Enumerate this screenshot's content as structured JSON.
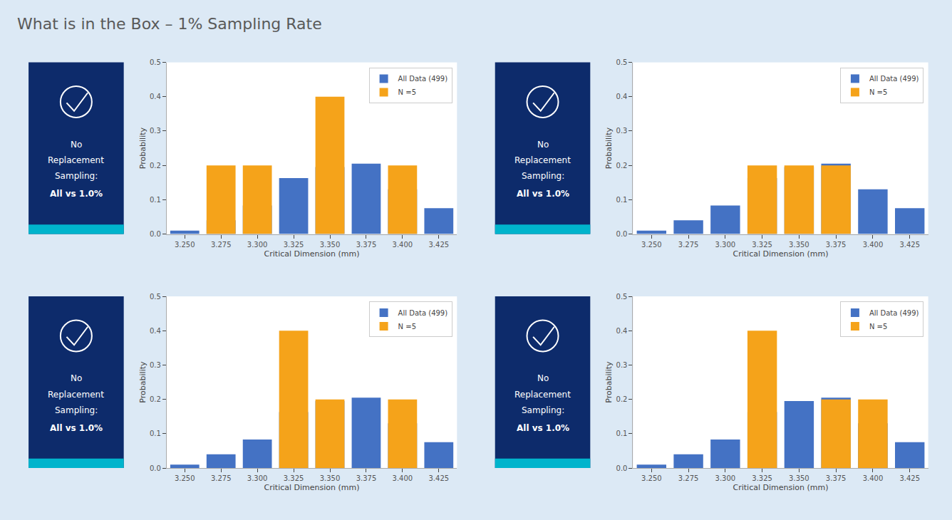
{
  "title": "What is in the Box – 1% Sampling Rate",
  "chart_data": [
    {
      "type": "bar",
      "xlabel": "Critical Dimension (mm)",
      "ylabel": "Probability",
      "x": [
        3.25,
        3.275,
        3.3,
        3.325,
        3.35,
        3.375,
        3.4,
        3.425
      ],
      "series": [
        {
          "name": "All Data (499)",
          "color": "#4472c4",
          "values": [
            0.01,
            0.04,
            0.083,
            0.163,
            0.195,
            0.205,
            0.13,
            0.075
          ]
        },
        {
          "name": "N =5",
          "color": "#f5a31a",
          "values": [
            0.0,
            0.2,
            0.2,
            0.0,
            0.4,
            0.0,
            0.2,
            0.0
          ]
        }
      ],
      "xlim": [
        3.2375,
        3.4375
      ],
      "ylim": [
        0.0,
        0.5
      ],
      "xticks": [
        {
          "value": 3.25,
          "label": "3.250"
        },
        3.275,
        {
          "value": 3.3,
          "label": "3.300"
        },
        3.325,
        {
          "value": 3.35,
          "label": "3.350"
        },
        3.375,
        {
          "value": 3.4,
          "label": "3.400"
        },
        3.425
      ],
      "yticks": [
        {
          "value": 0.0,
          "label": "0.0"
        },
        0.1,
        0.2,
        0.3,
        0.4,
        0.5
      ],
      "legend": "upper right",
      "grid": false,
      "annotations": [
        "No",
        "Replacement",
        "Sampling:",
        "All vs 1.0%"
      ]
    },
    {
      "type": "bar",
      "xlabel": "Critical Dimension (mm)",
      "ylabel": "Probability",
      "x": [
        3.25,
        3.275,
        3.3,
        3.325,
        3.35,
        3.375,
        3.4,
        3.425
      ],
      "series": [
        {
          "name": "All Data (499)",
          "color": "#4472c4",
          "values": [
            0.01,
            0.04,
            0.083,
            0.163,
            0.195,
            0.205,
            0.13,
            0.075
          ]
        },
        {
          "name": "N =5",
          "color": "#f5a31a",
          "values": [
            0.0,
            0.0,
            0.0,
            0.2,
            0.2,
            0.2,
            0.0,
            0.0
          ]
        }
      ],
      "xlim": [
        3.2375,
        3.4375
      ],
      "ylim": [
        0.0,
        0.5
      ],
      "xticks": [
        {
          "value": 3.25,
          "label": "3.250"
        },
        3.275,
        {
          "value": 3.3,
          "label": "3.300"
        },
        3.325,
        {
          "value": 3.35,
          "label": "3.350"
        },
        3.375,
        {
          "value": 3.4,
          "label": "3.400"
        },
        3.425
      ],
      "yticks": [
        {
          "value": 0.0,
          "label": "0.0"
        },
        0.1,
        0.2,
        0.3,
        0.4,
        0.5
      ],
      "legend": "upper right",
      "grid": false,
      "annotations": [
        "No",
        "Replacement",
        "Sampling:",
        "All vs 1.0%"
      ]
    },
    {
      "type": "bar",
      "xlabel": "Critical Dimension (mm)",
      "ylabel": "Probability",
      "x": [
        3.25,
        3.275,
        3.3,
        3.325,
        3.35,
        3.375,
        3.4,
        3.425
      ],
      "series": [
        {
          "name": "All Data (499)",
          "color": "#4472c4",
          "values": [
            0.01,
            0.04,
            0.083,
            0.163,
            0.195,
            0.205,
            0.13,
            0.075
          ]
        },
        {
          "name": "N =5",
          "color": "#f5a31a",
          "values": [
            0.0,
            0.0,
            0.0,
            0.4,
            0.2,
            0.0,
            0.2,
            0.0
          ]
        }
      ],
      "xlim": [
        3.2375,
        3.4375
      ],
      "ylim": [
        0.0,
        0.5
      ],
      "xticks": [
        {
          "value": 3.25,
          "label": "3.250"
        },
        3.275,
        {
          "value": 3.3,
          "label": "3.300"
        },
        3.325,
        {
          "value": 3.35,
          "label": "3.350"
        },
        3.375,
        {
          "value": 3.4,
          "label": "3.400"
        },
        3.425
      ],
      "yticks": [
        {
          "value": 0.0,
          "label": "0.0"
        },
        0.1,
        0.2,
        0.3,
        0.4,
        0.5
      ],
      "legend": "upper right",
      "grid": false,
      "annotations": [
        "No",
        "Replacement",
        "Sampling:",
        "All vs 1.0%"
      ]
    },
    {
      "type": "bar",
      "xlabel": "Critical Dimension (mm)",
      "ylabel": "Probability",
      "x": [
        3.25,
        3.275,
        3.3,
        3.325,
        3.35,
        3.375,
        3.4,
        3.425
      ],
      "series": [
        {
          "name": "All Data (499)",
          "color": "#4472c4",
          "values": [
            0.01,
            0.04,
            0.083,
            0.163,
            0.195,
            0.205,
            0.13,
            0.075
          ]
        },
        {
          "name": "N =5",
          "color": "#f5a31a",
          "values": [
            0.0,
            0.0,
            0.0,
            0.4,
            0.0,
            0.2,
            0.2,
            0.0
          ]
        }
      ],
      "xlim": [
        3.2375,
        3.4375
      ],
      "ylim": [
        0.0,
        0.5
      ],
      "xticks": [
        {
          "value": 3.25,
          "label": "3.250"
        },
        3.275,
        {
          "value": 3.3,
          "label": "3.300"
        },
        3.325,
        {
          "value": 3.35,
          "label": "3.350"
        },
        3.375,
        {
          "value": 3.4,
          "label": "3.400"
        },
        3.425
      ],
      "yticks": [
        {
          "value": 0.0,
          "label": "0.0"
        },
        0.1,
        0.2,
        0.3,
        0.4,
        0.5
      ],
      "legend": "upper right",
      "grid": false,
      "annotations": [
        "No",
        "Replacement",
        "Sampling:",
        "All vs 1.0%"
      ]
    }
  ]
}
